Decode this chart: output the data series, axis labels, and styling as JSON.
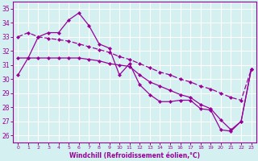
{
  "x": [
    0,
    1,
    2,
    3,
    4,
    5,
    6,
    7,
    8,
    9,
    10,
    11,
    12,
    13,
    14,
    15,
    16,
    17,
    18,
    19,
    20,
    21,
    22,
    23
  ],
  "line_jagged": [
    30.3,
    31.5,
    33.0,
    33.3,
    33.3,
    34.2,
    34.7,
    33.8,
    32.5,
    32.2,
    30.3,
    31.1,
    29.6,
    28.9,
    28.4,
    28.4,
    28.5,
    28.5,
    27.9,
    27.8,
    26.4,
    26.3,
    27.0,
    30.7
  ],
  "line_flat": [
    31.5,
    31.5,
    31.5,
    31.5,
    31.5,
    31.5,
    31.5,
    31.4,
    31.3,
    31.1,
    31.0,
    30.9,
    30.3,
    29.8,
    29.5,
    29.2,
    28.9,
    28.7,
    28.2,
    27.9,
    27.1,
    26.4,
    27.0,
    30.7
  ],
  "line_diag": [
    33.0,
    33.3,
    33.0,
    32.9,
    32.8,
    32.7,
    32.5,
    32.3,
    32.1,
    31.9,
    31.6,
    31.4,
    31.1,
    30.8,
    30.5,
    30.3,
    30.0,
    29.8,
    29.5,
    29.3,
    29.0,
    28.7,
    28.5,
    30.7
  ],
  "color": "#990099",
  "bg_color": "#d4f0f0",
  "grid_color": "#b0dede",
  "yticks": [
    26,
    27,
    28,
    29,
    30,
    31,
    32,
    33,
    34,
    35
  ],
  "ylim": [
    25.5,
    35.5
  ],
  "xlim": [
    -0.5,
    23.5
  ],
  "xlabel": "Windchill (Refroidissement éolien,°C)"
}
